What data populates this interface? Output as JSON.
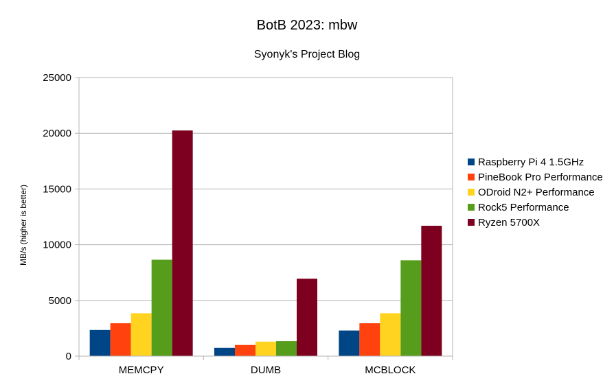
{
  "chart_data": {
    "type": "bar",
    "title": "BotB 2023: mbw",
    "subtitle": "Syonyk's Project Blog",
    "xlabel": "",
    "ylabel": "MB/s (higher is better)",
    "ylim": [
      0,
      25000
    ],
    "yticks": [
      0,
      5000,
      10000,
      15000,
      20000,
      25000
    ],
    "grid": true,
    "legend_position": "right",
    "categories": [
      "MEMCPY",
      "DUMB",
      "MCBLOCK"
    ],
    "series": [
      {
        "name": "Raspberry Pi 4 1.5GHz",
        "color": "#004586",
        "values": [
          2350,
          750,
          2300
        ]
      },
      {
        "name": "PineBook Pro Performance",
        "color": "#ff420e",
        "values": [
          2950,
          1000,
          2950
        ]
      },
      {
        "name": "ODroid N2+ Performance",
        "color": "#ffd320",
        "values": [
          3850,
          1300,
          3850
        ]
      },
      {
        "name": "Rock5 Performance",
        "color": "#579d1c",
        "values": [
          8650,
          1350,
          8600
        ]
      },
      {
        "name": "Ryzen 5700X",
        "color": "#7e0021",
        "values": [
          20250,
          6950,
          11700
        ]
      }
    ]
  }
}
